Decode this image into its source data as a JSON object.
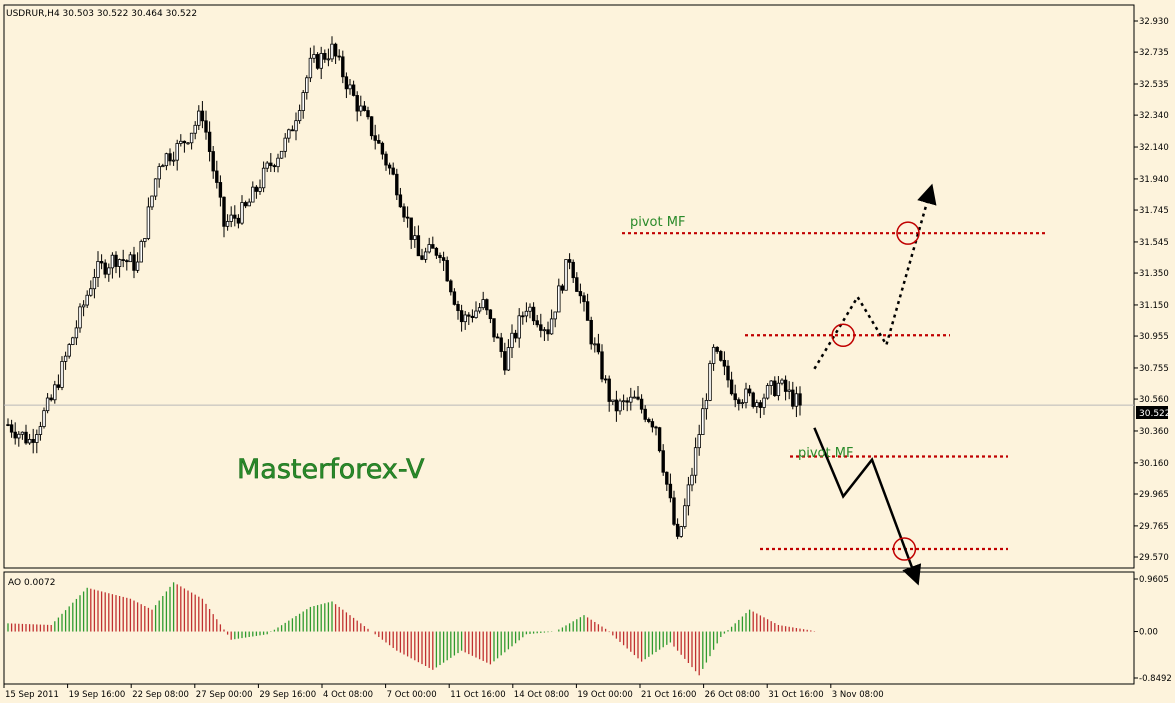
{
  "header": {
    "symbol_info": "USDRUR,H4  30.503 30.522 30.464 30.522"
  },
  "watermark": "Masterforex-V",
  "annotations": {
    "pivot_top": "pivot MF",
    "pivot_mid": "pivot MF"
  },
  "current_price_label": "30.522",
  "colors": {
    "background": "#fdf3dc",
    "candle": "#000000",
    "pivot_line": "#c00000",
    "ao_up": "#2e9a2e",
    "ao_down": "#c03030",
    "watermark": "#2a8a2a",
    "annotation_text": "#2a8a2a"
  },
  "chart_data": [
    {
      "type": "candlestick",
      "title": "USDRUR,H4",
      "yticks": [
        "32.930",
        "32.735",
        "32.535",
        "32.340",
        "32.140",
        "31.940",
        "31.745",
        "31.545",
        "31.350",
        "31.150",
        "30.955",
        "30.755",
        "30.560",
        "30.360",
        "30.160",
        "29.965",
        "29.765",
        "29.570"
      ],
      "ylim": [
        29.57,
        32.93
      ],
      "x_labels": [
        "15 Sep 2011",
        "19 Sep 16:00",
        "22 Sep 08:00",
        "27 Sep 00:00",
        "29 Sep 16:00",
        "4 Oct 08:00",
        "7 Oct 00:00",
        "11 Oct 16:00",
        "14 Oct 08:00",
        "19 Oct 00:00",
        "21 Oct 16:00",
        "26 Oct 08:00",
        "31 Oct 16:00",
        "3 Nov 08:00"
      ],
      "last_price": 30.522,
      "close_path": [
        {
          "bar": 0,
          "close": 30.4
        },
        {
          "bar": 6,
          "close": 30.3
        },
        {
          "bar": 12,
          "close": 30.55
        },
        {
          "bar": 18,
          "close": 30.95
        },
        {
          "bar": 24,
          "close": 31.35
        },
        {
          "bar": 30,
          "close": 31.45
        },
        {
          "bar": 36,
          "close": 31.4
        },
        {
          "bar": 42,
          "close": 32.05
        },
        {
          "bar": 48,
          "close": 32.15
        },
        {
          "bar": 54,
          "close": 32.35
        },
        {
          "bar": 60,
          "close": 31.65
        },
        {
          "bar": 66,
          "close": 31.75
        },
        {
          "bar": 72,
          "close": 32.0
        },
        {
          "bar": 78,
          "close": 32.2
        },
        {
          "bar": 84,
          "close": 32.65
        },
        {
          "bar": 90,
          "close": 32.75
        },
        {
          "bar": 96,
          "close": 32.45
        },
        {
          "bar": 102,
          "close": 32.2
        },
        {
          "bar": 108,
          "close": 31.9
        },
        {
          "bar": 114,
          "close": 31.45
        },
        {
          "bar": 120,
          "close": 31.5
        },
        {
          "bar": 126,
          "close": 31.05
        },
        {
          "bar": 132,
          "close": 31.15
        },
        {
          "bar": 138,
          "close": 30.8
        },
        {
          "bar": 144,
          "close": 31.15
        },
        {
          "bar": 150,
          "close": 31.0
        },
        {
          "bar": 156,
          "close": 31.45
        },
        {
          "bar": 162,
          "close": 30.95
        },
        {
          "bar": 168,
          "close": 30.5
        },
        {
          "bar": 174,
          "close": 30.55
        },
        {
          "bar": 180,
          "close": 30.4
        },
        {
          "bar": 186,
          "close": 29.65
        },
        {
          "bar": 190,
          "close": 30.1
        },
        {
          "bar": 196,
          "close": 30.85
        },
        {
          "bar": 202,
          "close": 30.6
        },
        {
          "bar": 208,
          "close": 30.55
        },
        {
          "bar": 214,
          "close": 30.65
        },
        {
          "bar": 220,
          "close": 30.52
        }
      ],
      "pivot_levels": [
        {
          "label": "pivot MF",
          "price": 31.6
        },
        {
          "price": 30.96
        },
        {
          "label": "pivot MF",
          "price": 30.2
        },
        {
          "price": 29.62
        }
      ],
      "forecast_paths": [
        {
          "style": "dotted",
          "points": [
            [
              224,
              30.75
            ],
            [
              236,
              31.2
            ],
            [
              244,
              30.9
            ],
            [
              256,
              31.85
            ]
          ]
        },
        {
          "style": "solid",
          "points": [
            [
              224,
              30.38
            ],
            [
              232,
              29.95
            ],
            [
              240,
              30.18
            ],
            [
              252,
              29.45
            ]
          ]
        }
      ],
      "target_circles": [
        {
          "bar": 232,
          "price": 30.96
        },
        {
          "bar": 250,
          "price": 31.6
        },
        {
          "bar": 249,
          "price": 29.62
        }
      ]
    },
    {
      "type": "bar",
      "title": "AO 0.0072",
      "series_name": "AO",
      "last_value": 0.0072,
      "yticks": [
        "0.9605",
        "0.00",
        "-0.8492"
      ],
      "ylim": [
        -0.8492,
        0.9605
      ],
      "values_keypoints": [
        {
          "bar": 0,
          "value": 0.15
        },
        {
          "bar": 12,
          "value": 0.12
        },
        {
          "bar": 22,
          "value": 0.8
        },
        {
          "bar": 34,
          "value": 0.6
        },
        {
          "bar": 40,
          "value": 0.4
        },
        {
          "bar": 46,
          "value": 0.9
        },
        {
          "bar": 54,
          "value": 0.6
        },
        {
          "bar": 62,
          "value": -0.15
        },
        {
          "bar": 72,
          "value": -0.05
        },
        {
          "bar": 84,
          "value": 0.45
        },
        {
          "bar": 90,
          "value": 0.55
        },
        {
          "bar": 100,
          "value": 0.05
        },
        {
          "bar": 108,
          "value": -0.35
        },
        {
          "bar": 118,
          "value": -0.7
        },
        {
          "bar": 126,
          "value": -0.35
        },
        {
          "bar": 134,
          "value": -0.6
        },
        {
          "bar": 144,
          "value": -0.05
        },
        {
          "bar": 152,
          "value": 0.0
        },
        {
          "bar": 160,
          "value": 0.3
        },
        {
          "bar": 166,
          "value": 0.05
        },
        {
          "bar": 176,
          "value": -0.55
        },
        {
          "bar": 184,
          "value": -0.2
        },
        {
          "bar": 192,
          "value": -0.8
        },
        {
          "bar": 198,
          "value": -0.1
        },
        {
          "bar": 206,
          "value": 0.4
        },
        {
          "bar": 214,
          "value": 0.12
        },
        {
          "bar": 224,
          "value": 0.01
        }
      ]
    }
  ]
}
